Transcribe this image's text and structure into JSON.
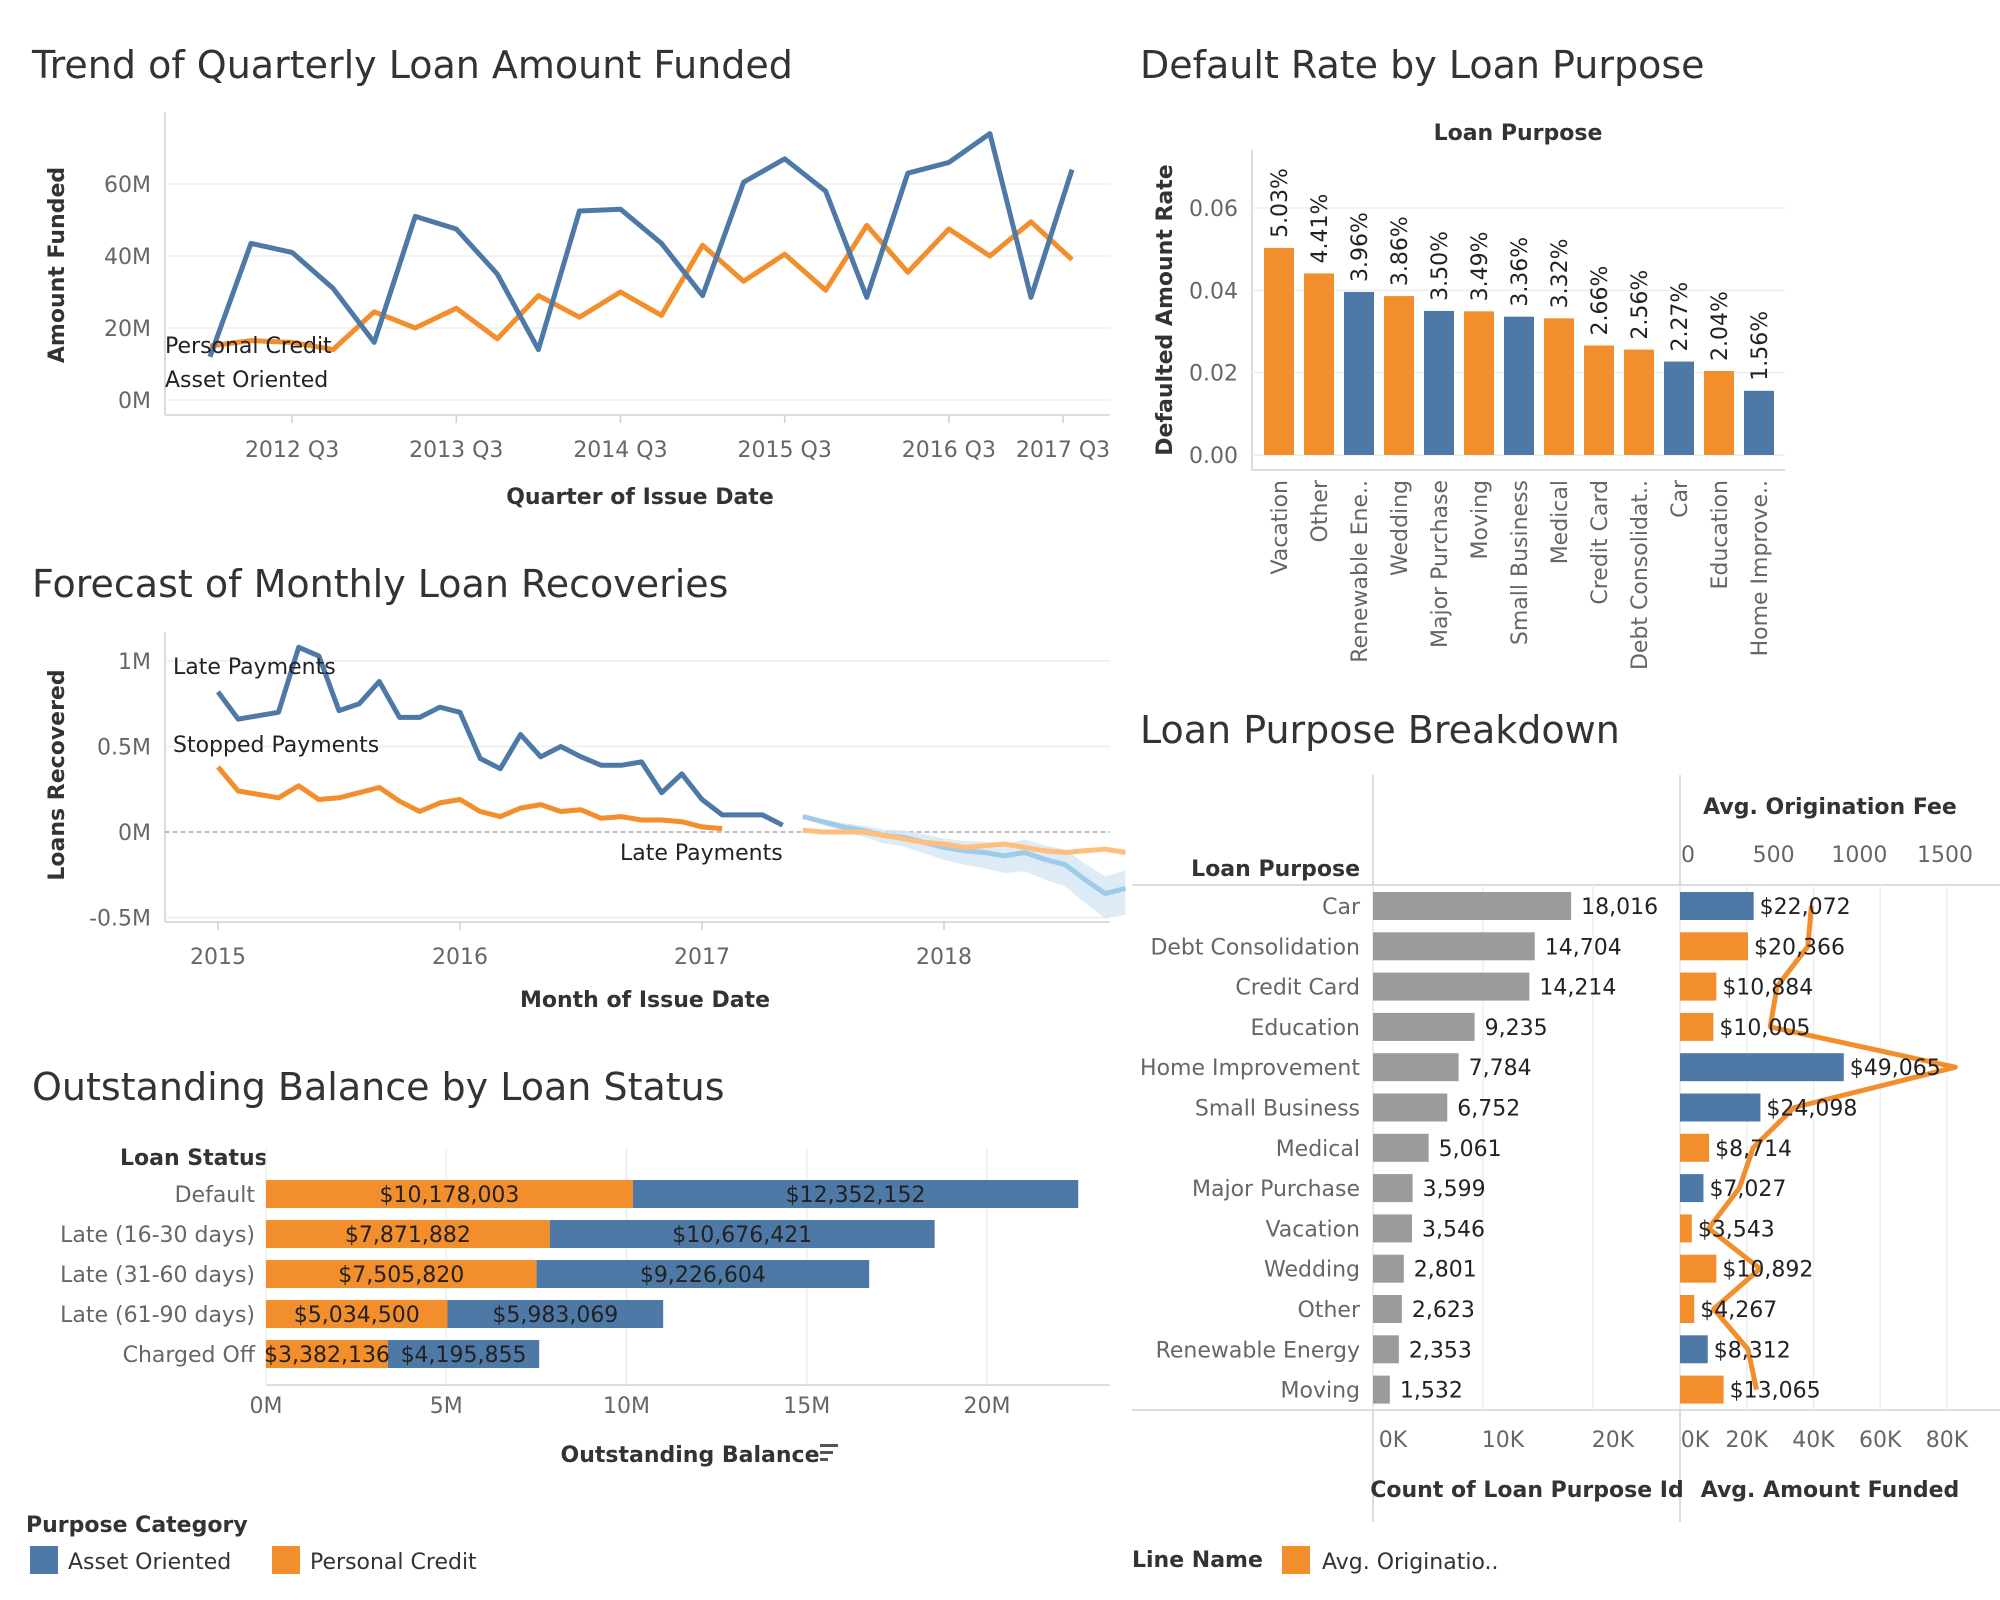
{
  "colors": {
    "asset": "#4e79a7",
    "personal": "#f28e2b",
    "bar_gray": "#9b9b9b",
    "fc_asset": "#a0cbe8",
    "fc_personal": "#ffbe7d",
    "band": "#cfe3f3"
  },
  "chart_data": [
    {
      "id": "trend",
      "type": "line",
      "title": "Trend of Quarterly Loan Amount Funded",
      "xlabel": "Quarter of Issue Date",
      "ylabel": "Amount Funded",
      "x_tick_labels": [
        "2012 Q3",
        "2013 Q3",
        "2014 Q3",
        "2015 Q3",
        "2016 Q3",
        "2017 Q3"
      ],
      "y_tick_labels": [
        "0M",
        "20M",
        "40M",
        "60M"
      ],
      "ylim": [
        0,
        75
      ],
      "unit": "M",
      "series": [
        {
          "name": "Asset Oriented",
          "color": "asset",
          "values": [
            12,
            43.5,
            41,
            31,
            16,
            51,
            47.5,
            35,
            14,
            52.5,
            53,
            43.5,
            29,
            60.5,
            67,
            58,
            28.5,
            63,
            66,
            74,
            28.5,
            64
          ]
        },
        {
          "name": "Personal Credit",
          "color": "personal",
          "values": [
            15,
            16.5,
            16,
            14,
            24.5,
            20,
            25.5,
            17,
            29,
            23,
            30,
            23.5,
            43,
            33,
            40.5,
            30.5,
            48.5,
            35.5,
            47.5,
            40,
            49.5,
            39
          ]
        }
      ]
    },
    {
      "id": "forecast",
      "type": "line",
      "title": "Forecast of Monthly Loan Recoveries",
      "xlabel": "Month of Issue Date",
      "ylabel": "Loans Recovered",
      "x_tick_labels": [
        "2015",
        "2016",
        "2017",
        "2018"
      ],
      "y_tick_labels": [
        "1M",
        "0.5M",
        "0M",
        "-0.5M"
      ],
      "ylim": [
        -0.6,
        1.15
      ],
      "unit": "M",
      "annotations": [
        "Late Payments",
        "Stopped Payments",
        "Late Payments"
      ],
      "series": [
        {
          "name": "Late Payments",
          "color": "asset",
          "kind": "actual",
          "values": [
            0.82,
            0.66,
            0.68,
            0.7,
            1.08,
            1.03,
            0.71,
            0.75,
            0.88,
            0.67,
            0.67,
            0.73,
            0.7,
            0.43,
            0.37,
            0.57,
            0.44,
            0.5,
            0.44,
            0.39,
            0.39,
            0.41,
            0.23,
            0.34,
            0.19,
            0.1,
            0.1,
            0.1,
            0.04
          ]
        },
        {
          "name": "Stopped Payments",
          "color": "personal",
          "kind": "actual",
          "values": [
            0.38,
            0.24,
            0.22,
            0.2,
            0.27,
            0.19,
            0.2,
            0.23,
            0.26,
            0.18,
            0.12,
            0.17,
            0.19,
            0.12,
            0.09,
            0.14,
            0.16,
            0.12,
            0.13,
            0.08,
            0.09,
            0.07,
            0.07,
            0.06,
            0.03,
            0.02
          ]
        },
        {
          "name": "Late Payments forecast",
          "color": "fc_asset",
          "kind": "forecast",
          "values": [
            0.09,
            0.06,
            0.03,
            0.01,
            -0.02,
            -0.03,
            -0.06,
            -0.09,
            -0.11,
            -0.12,
            -0.14,
            -0.12,
            -0.16,
            -0.19,
            -0.28,
            -0.36,
            -0.33
          ]
        },
        {
          "name": "Stopped Payments forecast",
          "color": "fc_personal",
          "kind": "forecast",
          "values": [
            0.01,
            0.0,
            0.0,
            0.0,
            -0.02,
            -0.04,
            -0.06,
            -0.07,
            -0.09,
            -0.08,
            -0.07,
            -0.09,
            -0.11,
            -0.12,
            -0.11,
            -0.1,
            -0.12
          ]
        }
      ]
    },
    {
      "id": "default_rate",
      "type": "bar",
      "title": "Default Rate by Loan Purpose",
      "header": "Loan Purpose",
      "ylabel": "Defaulted Amount Rate",
      "y_tick_labels": [
        "0.00",
        "0.02",
        "0.04",
        "0.06"
      ],
      "ylim": [
        0,
        0.06
      ],
      "categories": [
        "Vacation",
        "Other",
        "Renewable Ene..",
        "Wedding",
        "Major Purchase",
        "Moving",
        "Small Business",
        "Medical",
        "Credit Card",
        "Debt Consolidat..",
        "Car",
        "Education",
        "Home Improve.."
      ],
      "values": [
        0.0503,
        0.0441,
        0.0396,
        0.0386,
        0.035,
        0.0349,
        0.0336,
        0.0332,
        0.0266,
        0.0256,
        0.0227,
        0.0204,
        0.0156
      ],
      "labels": [
        "5.03%",
        "4.41%",
        "3.96%",
        "3.86%",
        "3.50%",
        "3.49%",
        "3.36%",
        "3.32%",
        "2.66%",
        "2.56%",
        "2.27%",
        "2.04%",
        "1.56%"
      ],
      "groups": [
        "personal",
        "personal",
        "asset",
        "personal",
        "asset",
        "personal",
        "asset",
        "personal",
        "personal",
        "personal",
        "asset",
        "personal",
        "asset"
      ]
    },
    {
      "id": "balance",
      "type": "bar",
      "orientation": "horizontal",
      "stacked": true,
      "title": "Outstanding Balance by Loan Status",
      "header": "Loan Status",
      "xlabel": "Outstanding Balance",
      "x_tick_labels": [
        "0M",
        "5M",
        "10M",
        "15M",
        "20M"
      ],
      "categories": [
        "Default",
        "Late (16-30 days)",
        "Late (31-60 days)",
        "Late (61-90 days)",
        "Charged Off"
      ],
      "series": [
        {
          "name": "Personal Credit",
          "color": "personal",
          "values": [
            10178003,
            7871882,
            7505820,
            5034500,
            3382136
          ],
          "labels": [
            "$10,178,003",
            "$7,871,882",
            "$7,505,820",
            "$5,034,500",
            "$3,382,136"
          ]
        },
        {
          "name": "Asset Oriented",
          "color": "asset",
          "values": [
            12352152,
            10676421,
            9226604,
            5983069,
            4195855
          ],
          "labels": [
            "$12,352,152",
            "$10,676,421",
            "$9,226,604",
            "$5,983,069",
            "$4,195,855"
          ]
        }
      ]
    },
    {
      "id": "breakdown",
      "type": "bar",
      "orientation": "horizontal",
      "title": "Loan Purpose Breakdown",
      "header": "Loan Purpose",
      "categories": [
        "Car",
        "Debt Consolidation",
        "Credit Card",
        "Education",
        "Home Improvement",
        "Small Business",
        "Medical",
        "Major Purchase",
        "Vacation",
        "Wedding",
        "Other",
        "Renewable Energy",
        "Moving"
      ],
      "count": {
        "xlabel": "Count of Loan Purpose Id",
        "x_tick_labels": [
          "0K",
          "10K",
          "20K"
        ],
        "values": [
          18016,
          14704,
          14214,
          9235,
          7784,
          6752,
          5061,
          3599,
          3546,
          2801,
          2623,
          2353,
          1532
        ],
        "labels": [
          "18,016",
          "14,704",
          "14,214",
          "9,235",
          "7,784",
          "6,752",
          "5,061",
          "3,599",
          "3,546",
          "2,801",
          "2,623",
          "2,353",
          "1,532"
        ]
      },
      "amount": {
        "xlabel": "Avg. Amount Funded",
        "x_tick_labels": [
          "0K",
          "20K",
          "40K",
          "60K",
          "80K"
        ],
        "values": [
          22072,
          20366,
          10884,
          10005,
          49065,
          24098,
          8714,
          7027,
          3543,
          10892,
          4267,
          8312,
          13065
        ],
        "labels": [
          "$22,072",
          "$20,366",
          "$10,884",
          "$10,005",
          "$49,065",
          "$24,098",
          "$8,714",
          "$7,027",
          "$3,543",
          "$10,892",
          "$4,267",
          "$8,312",
          "$13,065"
        ],
        "groups": [
          "asset",
          "personal",
          "personal",
          "personal",
          "asset",
          "asset",
          "personal",
          "asset",
          "personal",
          "personal",
          "personal",
          "asset",
          "personal"
        ]
      },
      "fee": {
        "title": "Avg. Origination Fee",
        "x_tick_labels": [
          "0",
          "500",
          "1000",
          "1500"
        ],
        "values": [
          720,
          700,
          520,
          480,
          1560,
          620,
          380,
          300,
          120,
          420,
          150,
          350,
          400
        ]
      }
    }
  ],
  "legends": {
    "purpose": {
      "title": "Purpose Category",
      "items": [
        {
          "label": "Asset Oriented",
          "color": "asset"
        },
        {
          "label": "Personal Credit",
          "color": "personal"
        }
      ]
    },
    "line": {
      "title": "Line Name",
      "items": [
        {
          "label": "Avg. Originatio..",
          "color": "personal"
        }
      ]
    }
  }
}
